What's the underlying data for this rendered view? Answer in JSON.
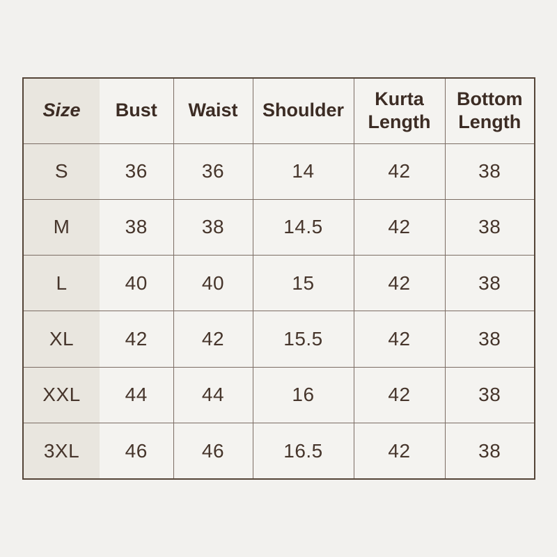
{
  "page": {
    "background_color": "#f2f1ee"
  },
  "style": {
    "colors": {
      "outer_border": "#544437",
      "inner_border": "#7b6c63",
      "header_text": "#3c2c24",
      "cell_text": "#46352b",
      "size_column_bg": "#e9e6df",
      "cell_bg": "#f4f3f0"
    }
  },
  "chart_data": {
    "type": "table",
    "title": "",
    "columns": [
      "Size",
      "Bust",
      "Waist",
      "Shoulder",
      "Kurta Length",
      "Bottom Length"
    ],
    "rows": [
      {
        "size": "S",
        "bust": "36",
        "waist": "36",
        "shoulder": "14",
        "kurta_length": "42",
        "bottom_length": "38"
      },
      {
        "size": "M",
        "bust": "38",
        "waist": "38",
        "shoulder": "14.5",
        "kurta_length": "42",
        "bottom_length": "38"
      },
      {
        "size": "L",
        "bust": "40",
        "waist": "40",
        "shoulder": "15",
        "kurta_length": "42",
        "bottom_length": "38"
      },
      {
        "size": "XL",
        "bust": "42",
        "waist": "42",
        "shoulder": "15.5",
        "kurta_length": "42",
        "bottom_length": "38"
      },
      {
        "size": "XXL",
        "bust": "44",
        "waist": "44",
        "shoulder": "16",
        "kurta_length": "42",
        "bottom_length": "38"
      },
      {
        "size": "3XL",
        "bust": "46",
        "waist": "46",
        "shoulder": "16.5",
        "kurta_length": "42",
        "bottom_length": "38"
      }
    ]
  }
}
